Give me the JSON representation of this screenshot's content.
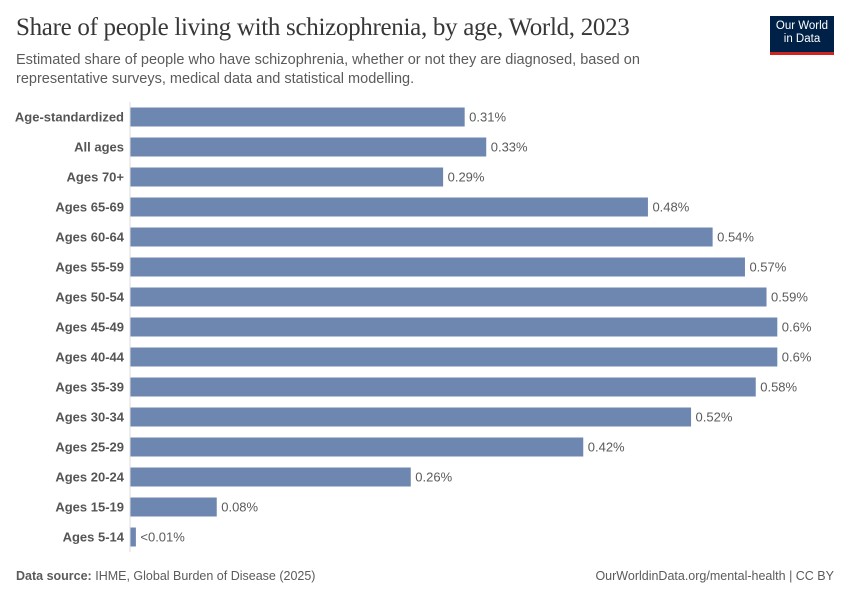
{
  "header": {
    "title": "Share of people living with schizophrenia, by age, World, 2023",
    "subtitle": "Estimated share of people who have schizophrenia, whether or not they are diagnosed, based on representative surveys, medical data and statistical modelling.",
    "logo_line1": "Our World",
    "logo_line2": "in Data"
  },
  "footer": {
    "source_label": "Data source:",
    "source_text": "IHME, Global Burden of Disease (2025)",
    "right": "OurWorldinData.org/mental-health | CC BY"
  },
  "colors": {
    "bar": "#6d87b0",
    "logo_bg": "#002147",
    "logo_accent": "#ce261e"
  },
  "chart_data": {
    "type": "bar",
    "orientation": "horizontal",
    "title": "Share of people living with schizophrenia, by age, World, 2023",
    "unit": "%",
    "categories": [
      "Age-standardized",
      "All ages",
      "Ages 70+",
      "Ages 65-69",
      "Ages 60-64",
      "Ages 55-59",
      "Ages 50-54",
      "Ages 45-49",
      "Ages 40-44",
      "Ages 35-39",
      "Ages 30-34",
      "Ages 25-29",
      "Ages 20-24",
      "Ages 15-19",
      "Ages 5-14"
    ],
    "values": [
      0.31,
      0.33,
      0.29,
      0.48,
      0.54,
      0.57,
      0.59,
      0.6,
      0.6,
      0.58,
      0.52,
      0.42,
      0.26,
      0.08,
      0.005
    ],
    "data_labels": [
      "0.31%",
      "0.33%",
      "0.29%",
      "0.48%",
      "0.54%",
      "0.57%",
      "0.59%",
      "0.6%",
      "0.6%",
      "0.58%",
      "0.52%",
      "0.42%",
      "0.26%",
      "0.08%",
      "<0.01%"
    ],
    "grid": false,
    "legend": "none"
  }
}
